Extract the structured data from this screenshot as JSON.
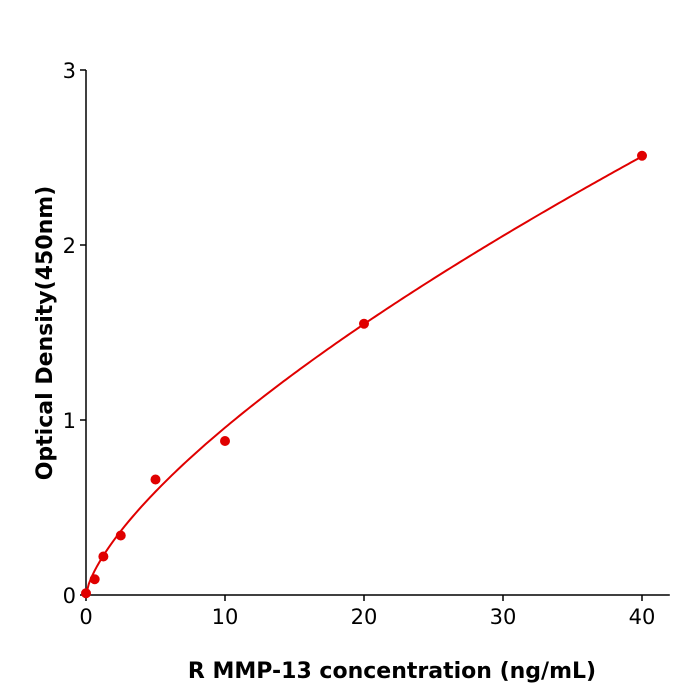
{
  "chart_data": {
    "type": "scatter",
    "title": "",
    "xlabel": "R  MMP-13 concentration (ng/mL)",
    "ylabel": "Optical Density(450nm)",
    "xlim": [
      0,
      42
    ],
    "ylim": [
      0,
      3
    ],
    "xticks": [
      0,
      10,
      20,
      30,
      40
    ],
    "yticks": [
      0,
      1,
      2,
      3
    ],
    "grid": false,
    "color": "#e00000",
    "points": {
      "x": [
        0,
        0.625,
        1.25,
        2.5,
        5,
        10,
        20,
        40
      ],
      "y": [
        0.01,
        0.09,
        0.22,
        0.34,
        0.66,
        0.88,
        1.55,
        2.51
      ]
    },
    "fit_curve": {
      "model": "power",
      "a": 0.193,
      "b": 0.695
    }
  }
}
